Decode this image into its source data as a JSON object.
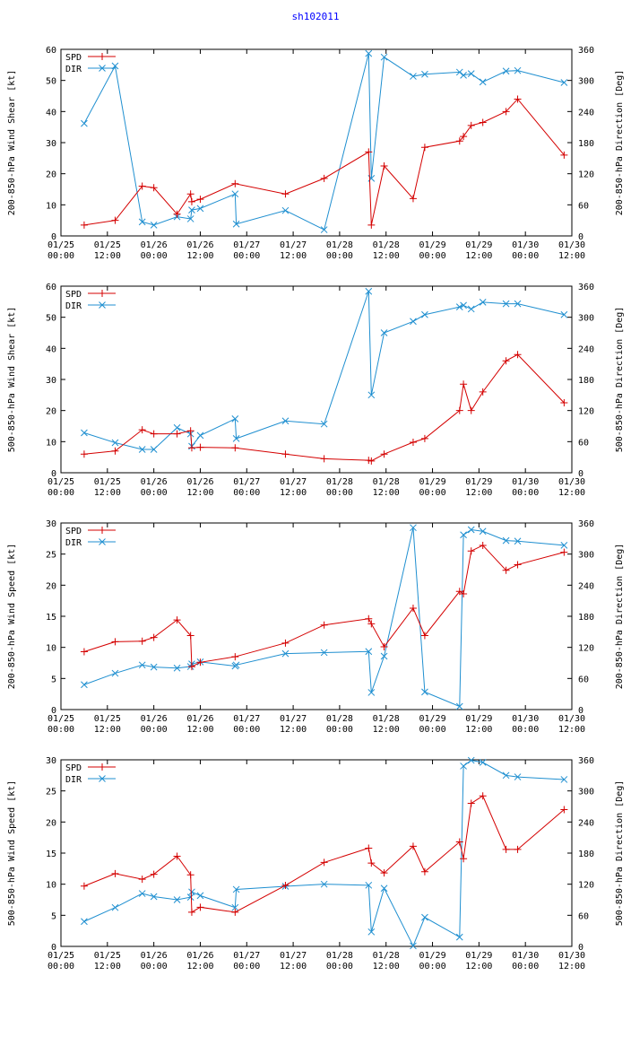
{
  "page": {
    "title": "sh102011"
  },
  "colors": {
    "spd": "#d40000",
    "dir": "#1f8fd0",
    "axis": "#000000"
  },
  "x_ticks": [
    {
      "t": 0,
      "l1": "01/25",
      "l2": "00:00"
    },
    {
      "t": 12,
      "l1": "01/25",
      "l2": "12:00"
    },
    {
      "t": 24,
      "l1": "01/26",
      "l2": "00:00"
    },
    {
      "t": 36,
      "l1": "01/26",
      "l2": "12:00"
    },
    {
      "t": 48,
      "l1": "01/27",
      "l2": "00:00"
    },
    {
      "t": 60,
      "l1": "01/27",
      "l2": "12:00"
    },
    {
      "t": 72,
      "l1": "01/28",
      "l2": "00:00"
    },
    {
      "t": 84,
      "l1": "01/28",
      "l2": "12:00"
    },
    {
      "t": 96,
      "l1": "01/29",
      "l2": "00:00"
    },
    {
      "t": 108,
      "l1": "01/29",
      "l2": "12:00"
    },
    {
      "t": 120,
      "l1": "01/30",
      "l2": "00:00"
    },
    {
      "t": 132,
      "l1": "01/30",
      "l2": "12:00"
    }
  ],
  "chart_data": [
    {
      "type": "line",
      "xlim": [
        0,
        132
      ],
      "ylim": [
        0,
        60
      ],
      "y2lim": [
        0,
        360
      ],
      "yticks": [
        0,
        10,
        20,
        30,
        40,
        50,
        60
      ],
      "y2ticks": [
        0,
        60,
        120,
        180,
        240,
        300,
        360
      ],
      "ylabel": "200-850-hPa Wind Shear [kt]",
      "y2label": "200-850-hPa Direction [Deg]",
      "legend": [
        "SPD",
        "DIR"
      ],
      "spd": {
        "x": [
          6,
          14,
          21,
          24,
          30,
          33.5,
          33.8,
          36,
          45,
          58,
          68,
          79.5,
          80.2,
          83.5,
          91,
          94,
          103,
          104,
          106,
          109,
          115,
          118,
          130
        ],
        "y": [
          3.5,
          5,
          16,
          15.5,
          7,
          13.5,
          11,
          11.8,
          16.8,
          13.5,
          18.5,
          27,
          3.5,
          22.5,
          12,
          28.5,
          30.5,
          32,
          35.5,
          36.5,
          40,
          44,
          26
        ]
      },
      "dir": {
        "x": [
          6,
          14,
          21,
          24,
          30,
          33.5,
          33.8,
          36,
          45,
          45.3,
          58,
          68,
          79.5,
          80.2,
          83.5,
          91,
          94,
          103,
          104,
          106,
          109,
          115,
          118,
          130
        ],
        "y": [
          217,
          328,
          27,
          21,
          37,
          33,
          50,
          53,
          81,
          23,
          49,
          12,
          352,
          111,
          345,
          308,
          312,
          316,
          310,
          313,
          297,
          318,
          319,
          296
        ]
      }
    },
    {
      "type": "line",
      "xlim": [
        0,
        132
      ],
      "ylim": [
        0,
        60
      ],
      "y2lim": [
        0,
        360
      ],
      "yticks": [
        0,
        10,
        20,
        30,
        40,
        50,
        60
      ],
      "y2ticks": [
        0,
        60,
        120,
        180,
        240,
        300,
        360
      ],
      "ylabel": "500-850-hPa Wind Shear [kt]",
      "y2label": "500-850-hPa Direction [Deg]",
      "legend": [
        "SPD",
        "DIR"
      ],
      "spd": {
        "x": [
          6,
          14,
          21,
          24,
          30,
          33.5,
          33.8,
          36,
          45,
          58,
          68,
          79.5,
          80.2,
          83.5,
          91,
          94,
          103,
          104,
          106,
          109,
          115,
          118,
          130
        ],
        "y": [
          6,
          7,
          13.8,
          12.5,
          12.5,
          13.5,
          8,
          8.2,
          8,
          6,
          4.5,
          4,
          3.8,
          6,
          9.8,
          11,
          20,
          28.5,
          20,
          26,
          36,
          38,
          22.5
        ]
      },
      "dir": {
        "x": [
          6,
          14,
          21,
          24,
          30,
          33.5,
          33.8,
          36,
          45,
          45.3,
          58,
          68,
          79.5,
          80.2,
          83.5,
          91,
          94,
          103,
          104,
          106,
          109,
          115,
          118,
          130
        ],
        "y": [
          77,
          58,
          45,
          45,
          87,
          75,
          51,
          72,
          104,
          66,
          100,
          94,
          350,
          150,
          270,
          292,
          305,
          320,
          323,
          316,
          329,
          326,
          326,
          305
        ]
      }
    },
    {
      "type": "line",
      "xlim": [
        0,
        132
      ],
      "ylim": [
        0,
        30
      ],
      "y2lim": [
        0,
        360
      ],
      "yticks": [
        0,
        5,
        10,
        15,
        20,
        25,
        30
      ],
      "y2ticks": [
        0,
        60,
        120,
        180,
        240,
        300,
        360
      ],
      "ylabel": "200-850-hPa Wind Speed [kt]",
      "y2label": "200-850-hPa Direction [Deg]",
      "legend": [
        "SPD",
        "DIR"
      ],
      "spd": {
        "x": [
          6,
          14,
          21,
          24,
          30,
          33.5,
          33.8,
          36,
          45,
          58,
          68,
          79.5,
          80.2,
          83.5,
          91,
          94,
          103,
          104,
          106,
          109,
          115,
          118,
          130
        ],
        "y": [
          9.3,
          10.9,
          11,
          11.6,
          14.4,
          11.9,
          6.9,
          7.6,
          8.5,
          10.7,
          13.6,
          14.6,
          13.8,
          10.1,
          16.3,
          11.9,
          19,
          18.6,
          25.5,
          26.4,
          22.4,
          23.3,
          25.3
        ]
      },
      "dir": {
        "x": [
          6,
          14,
          21,
          24,
          30,
          33.5,
          33.8,
          36,
          45,
          45.3,
          58,
          68,
          79.5,
          80.2,
          83.5,
          91,
          94,
          103,
          104,
          106,
          109,
          115,
          118,
          130
        ],
        "y": [
          48,
          70,
          86,
          82,
          80,
          83,
          88,
          92,
          84,
          86,
          108,
          110,
          112,
          33,
          103,
          351,
          34,
          6,
          337,
          347,
          344,
          326,
          325,
          317
        ]
      }
    },
    {
      "type": "line",
      "xlim": [
        0,
        132
      ],
      "ylim": [
        0,
        30
      ],
      "y2lim": [
        0,
        360
      ],
      "yticks": [
        0,
        5,
        10,
        15,
        20,
        25,
        30
      ],
      "y2ticks": [
        0,
        60,
        120,
        180,
        240,
        300,
        360
      ],
      "ylabel": "500-850-hPa Wind Speed [kt]",
      "y2label": "500-850-hPa Direction [Deg]",
      "legend": [
        "SPD",
        "DIR"
      ],
      "spd": {
        "x": [
          6,
          14,
          21,
          24,
          30,
          33.5,
          33.8,
          36,
          45,
          58,
          68,
          79.5,
          80.2,
          83.5,
          91,
          94,
          103,
          104,
          106,
          109,
          115,
          118,
          130
        ],
        "y": [
          9.7,
          11.7,
          10.8,
          11.6,
          14.5,
          11.5,
          5.5,
          6.3,
          5.5,
          9.8,
          13.5,
          15.8,
          13.4,
          11.8,
          16.1,
          12,
          16.8,
          14.1,
          23,
          24.2,
          15.6,
          15.6,
          22
        ]
      },
      "dir": {
        "x": [
          6,
          14,
          21,
          24,
          30,
          33.5,
          33.8,
          36,
          45,
          45.3,
          58,
          68,
          79.5,
          80.2,
          83.5,
          91,
          94,
          103,
          104,
          106,
          109,
          115,
          118,
          130
        ],
        "y": [
          48,
          75,
          102,
          96,
          90,
          95,
          105,
          98,
          75,
          110,
          116,
          120,
          118,
          28,
          112,
          1,
          56,
          18,
          348,
          359,
          355,
          330,
          327,
          322
        ]
      }
    }
  ]
}
